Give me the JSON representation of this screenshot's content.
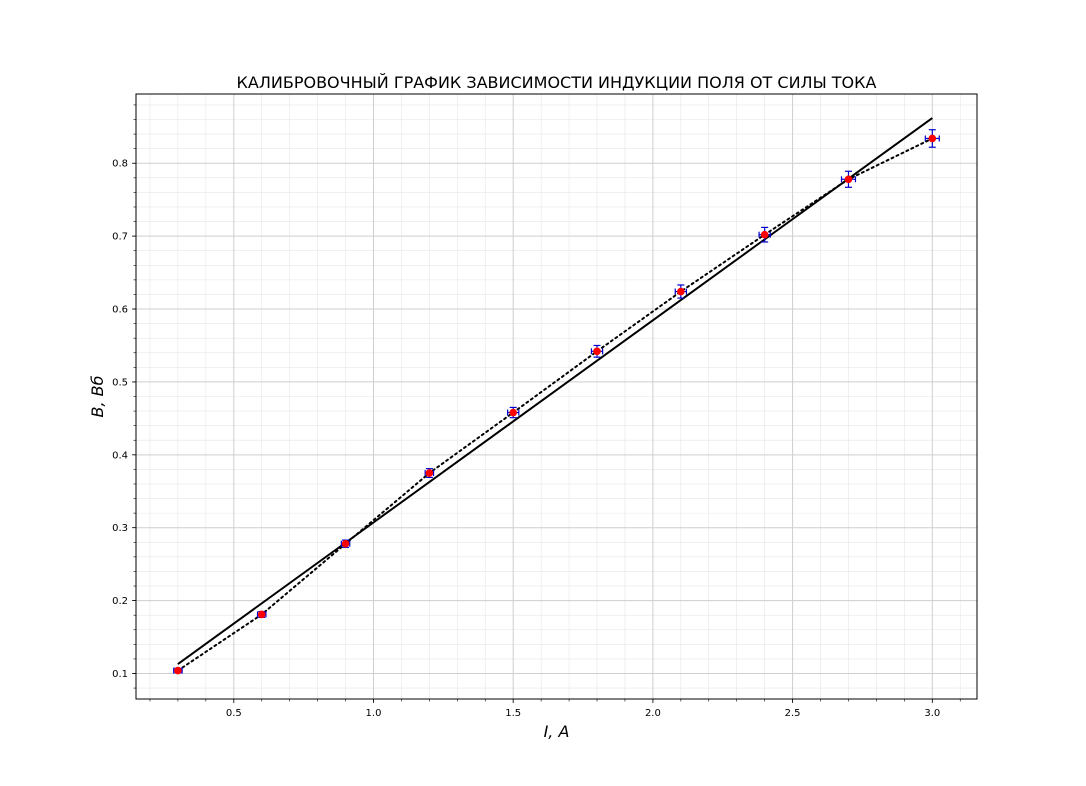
{
  "chart_data": {
    "type": "scatter",
    "title": "КАЛИБРОВОЧНЫЙ ГРАФИК ЗАВИСИМОСТИ ИНДУКЦИИ ПОЛЯ ОТ СИЛЫ ТОКА",
    "xlabel": "I, A",
    "ylabel": "B, Вб",
    "xlim": [
      0.15,
      3.16
    ],
    "ylim": [
      0.065,
      0.895
    ],
    "grid": true,
    "x_ticks": [
      0.5,
      1.0,
      1.5,
      2.0,
      2.5,
      3.0
    ],
    "x_tick_labels": [
      "0.5",
      "1.0",
      "1.5",
      "2.0",
      "2.5",
      "3.0"
    ],
    "y_ticks": [
      0.1,
      0.2,
      0.3,
      0.4,
      0.5,
      0.6,
      0.7,
      0.8
    ],
    "y_tick_labels": [
      "0.1",
      "0.2",
      "0.3",
      "0.4",
      "0.5",
      "0.6",
      "0.7",
      "0.8"
    ],
    "series": [
      {
        "kind": "points",
        "color": "#ff0000",
        "errorbar_color": "#0000cc",
        "x": [
          0.3,
          0.6,
          0.9,
          1.2,
          1.5,
          1.8,
          2.1,
          2.4,
          2.7,
          3.0
        ],
        "y": [
          0.104,
          0.181,
          0.278,
          0.375,
          0.458,
          0.542,
          0.624,
          0.702,
          0.778,
          0.834
        ],
        "x_err": [
          0.015,
          0.015,
          0.015,
          0.015,
          0.02,
          0.02,
          0.02,
          0.02,
          0.025,
          0.025
        ],
        "y_err": [
          0.003,
          0.004,
          0.005,
          0.006,
          0.007,
          0.008,
          0.009,
          0.01,
          0.011,
          0.012
        ]
      },
      {
        "kind": "dotted-line",
        "color": "#000000",
        "x": [
          0.3,
          0.6,
          0.9,
          1.2,
          1.5,
          1.8,
          2.1,
          2.4,
          2.7,
          3.0
        ],
        "y": [
          0.104,
          0.181,
          0.278,
          0.375,
          0.458,
          0.542,
          0.624,
          0.702,
          0.778,
          0.834
        ]
      },
      {
        "kind": "solid-line",
        "color": "#000000",
        "x": [
          0.3,
          3.0
        ],
        "y": [
          0.113,
          0.862
        ]
      }
    ]
  }
}
